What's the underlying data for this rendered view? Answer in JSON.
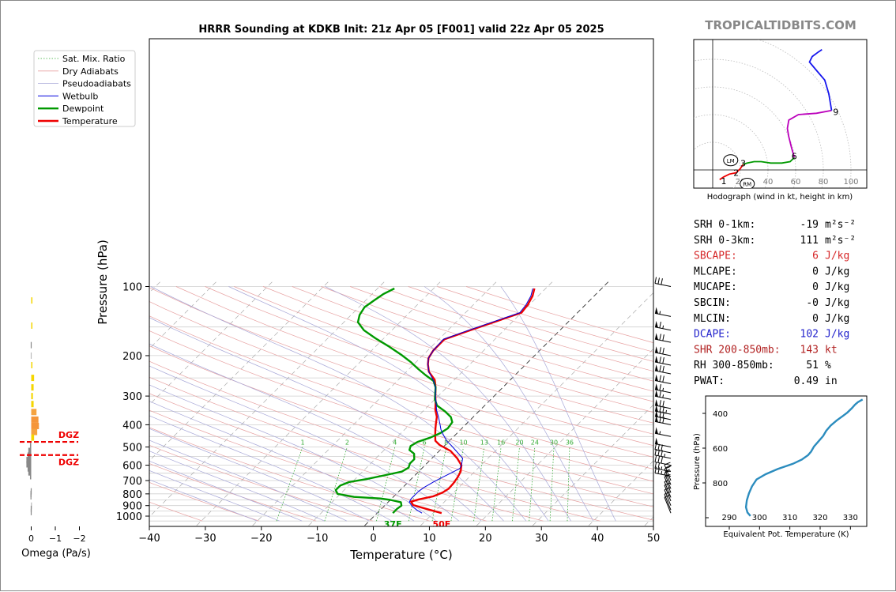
{
  "chart_data": {
    "type": "line",
    "title": "HRRR Sounding at KDKB Init: 21z Apr 05 [F001] valid 22z Apr 05 2025",
    "watermark": "TROPICALTIDBITS.COM",
    "xlabel": "Temperature (°C)",
    "ylabel": "Pressure (hPa)",
    "xlim": [
      -40,
      50
    ],
    "ylim": [
      1050,
      100
    ],
    "xticks": [
      "−40",
      "−30",
      "−20",
      "−10",
      "0",
      "10",
      "20",
      "30",
      "40",
      "50"
    ],
    "yticks": [
      "100",
      "200",
      "300",
      "400",
      "500",
      "600",
      "700",
      "800",
      "900",
      "1000"
    ],
    "legend_position": "top-left",
    "legend": [
      "Sat. Mix. Ratio",
      "Dry Adiabats",
      "Pseudoadiabats",
      "Wetbulb",
      "Dewpoint",
      "Temperature"
    ],
    "mixing_ratio_labels": [
      "1",
      "2",
      "4",
      "6",
      "8",
      "10",
      "13",
      "16",
      "20",
      "24",
      "30",
      "36"
    ],
    "surface_labels": {
      "temperature": "50F",
      "dewpoint": "37F"
    },
    "series": [
      {
        "name": "Temperature",
        "color": "#ee0000",
        "points": [
          [
            11.5,
            970
          ],
          [
            8,
            930
          ],
          [
            5,
            895
          ],
          [
            4,
            865
          ],
          [
            5,
            845
          ],
          [
            7,
            820
          ],
          [
            8,
            790
          ],
          [
            8.4,
            760
          ],
          [
            8.3,
            720
          ],
          [
            8,
            680
          ],
          [
            7.5,
            640
          ],
          [
            6.5,
            600
          ],
          [
            4.5,
            560
          ],
          [
            2,
            520
          ],
          [
            -1,
            490
          ],
          [
            -2.5,
            470
          ],
          [
            -3.5,
            445
          ],
          [
            -4.5,
            420
          ],
          [
            -5.5,
            395
          ],
          [
            -6.5,
            370
          ],
          [
            -8,
            345
          ],
          [
            -9.3,
            320
          ],
          [
            -10.5,
            300
          ],
          [
            -12,
            275
          ],
          [
            -13.5,
            255
          ],
          [
            -16,
            235
          ],
          [
            -17.5,
            218
          ],
          [
            -18.5,
            205
          ],
          [
            -19,
            190
          ],
          [
            -19,
            170
          ],
          [
            -16,
            155
          ],
          [
            -13,
            142
          ],
          [
            -10,
            130
          ],
          [
            -10.3,
            120
          ],
          [
            -11,
            110
          ],
          [
            -12,
            102
          ]
        ]
      },
      {
        "name": "Dewpoint",
        "color": "#009900",
        "points": [
          [
            2.8,
            970
          ],
          [
            2.8,
            930
          ],
          [
            3,
            900
          ],
          [
            2.3,
            870
          ],
          [
            0,
            850
          ],
          [
            -2,
            838
          ],
          [
            -7,
            825
          ],
          [
            -10.5,
            800
          ],
          [
            -11.5,
            770
          ],
          [
            -11.5,
            735
          ],
          [
            -10.5,
            710
          ],
          [
            -8,
            690
          ],
          [
            -5.5,
            665
          ],
          [
            -3,
            640
          ],
          [
            -2.5,
            615
          ],
          [
            -3,
            590
          ],
          [
            -3,
            565
          ],
          [
            -4,
            535
          ],
          [
            -5.5,
            515
          ],
          [
            -6,
            495
          ],
          [
            -5.5,
            475
          ],
          [
            -4,
            455
          ],
          [
            -3,
            435
          ],
          [
            -2.5,
            415
          ],
          [
            -2.8,
            390
          ],
          [
            -4,
            370
          ],
          [
            -6,
            350
          ],
          [
            -8.5,
            330
          ],
          [
            -10,
            310
          ],
          [
            -11,
            292
          ],
          [
            -12,
            275
          ],
          [
            -13.5,
            258
          ],
          [
            -16,
            243
          ],
          [
            -18.5,
            228
          ],
          [
            -21,
            213
          ],
          [
            -24,
            198
          ],
          [
            -27.5,
            183
          ],
          [
            -31.5,
            168
          ],
          [
            -35,
            155
          ],
          [
            -37.5,
            143
          ],
          [
            -38.5,
            133
          ],
          [
            -39,
            123
          ],
          [
            -38.5,
            115
          ],
          [
            -38,
            108
          ],
          [
            -37,
            102
          ]
        ]
      },
      {
        "name": "Wetbulb",
        "color": "#0000dd",
        "points": [
          [
            8,
            970
          ],
          [
            6.5,
            940
          ],
          [
            5,
            905
          ],
          [
            3.8,
            870
          ],
          [
            3.5,
            840
          ],
          [
            3.5,
            810
          ],
          [
            3.5,
            780
          ],
          [
            3.8,
            750
          ],
          [
            4.5,
            710
          ],
          [
            5.2,
            680
          ],
          [
            6,
            650
          ],
          [
            6.8,
            620
          ],
          [
            6.5,
            600
          ],
          [
            5.5,
            560
          ],
          [
            3,
            520
          ],
          [
            1,
            490
          ],
          [
            -0.5,
            470
          ],
          [
            -2,
            445
          ],
          [
            -3.5,
            420
          ],
          [
            -4.8,
            395
          ],
          [
            -6.2,
            370
          ],
          [
            -7.8,
            345
          ],
          [
            -9.2,
            320
          ],
          [
            -10.5,
            300
          ],
          [
            -12,
            275
          ],
          [
            -13.8,
            255
          ],
          [
            -16,
            235
          ],
          [
            -17.5,
            218
          ],
          [
            -18.5,
            205
          ],
          [
            -19,
            190
          ],
          [
            -19.2,
            170
          ],
          [
            -16.3,
            155
          ],
          [
            -13.3,
            142
          ],
          [
            -10.3,
            130
          ],
          [
            -10.6,
            120
          ],
          [
            -11.3,
            110
          ],
          [
            -12.3,
            102
          ]
        ]
      }
    ],
    "wind_barbs": [
      {
        "p": 970,
        "spd": 10
      },
      {
        "p": 940,
        "spd": 10
      },
      {
        "p": 900,
        "spd": 10
      },
      {
        "p": 860,
        "spd": 10
      },
      {
        "p": 830,
        "spd": 5
      },
      {
        "p": 790,
        "spd": 10
      },
      {
        "p": 760,
        "spd": 15
      },
      {
        "p": 730,
        "spd": 15
      },
      {
        "p": 700,
        "spd": 25
      },
      {
        "p": 670,
        "spd": 25
      },
      {
        "p": 640,
        "spd": 25
      },
      {
        "p": 600,
        "spd": 30
      },
      {
        "p": 560,
        "spd": 35
      },
      {
        "p": 530,
        "spd": 30
      },
      {
        "p": 500,
        "spd": 50
      },
      {
        "p": 450,
        "spd": 55
      },
      {
        "p": 400,
        "spd": 70
      },
      {
        "p": 380,
        "spd": 70
      },
      {
        "p": 360,
        "spd": 75
      },
      {
        "p": 340,
        "spd": 70
      },
      {
        "p": 310,
        "spd": 65
      },
      {
        "p": 290,
        "spd": 65
      },
      {
        "p": 265,
        "spd": 70
      },
      {
        "p": 240,
        "spd": 70
      },
      {
        "p": 220,
        "spd": 70
      },
      {
        "p": 200,
        "spd": 70
      },
      {
        "p": 175,
        "spd": 70
      },
      {
        "p": 155,
        "spd": 65
      },
      {
        "p": 135,
        "spd": 55
      },
      {
        "p": 100,
        "spd": 30
      }
    ],
    "omega_panel": {
      "xlabel": "Omega (Pa/s)",
      "xticks": [
        "0",
        "−1",
        "−2"
      ],
      "dgz_label": "DGZ",
      "dgz_bounds_hpa": [
        475,
        542
      ],
      "bars": [
        {
          "p": 115,
          "v": -0.05,
          "c": "#f5d600"
        },
        {
          "p": 148,
          "v": -0.05,
          "c": "#f5d600"
        },
        {
          "p": 180,
          "v": 0.02,
          "c": "#888888"
        },
        {
          "p": 200,
          "v": 0.02,
          "c": "#bbbbbb"
        },
        {
          "p": 220,
          "v": -0.05,
          "c": "#f5d600"
        },
        {
          "p": 250,
          "v": -0.12,
          "c": "#f5d600"
        },
        {
          "p": 275,
          "v": -0.1,
          "c": "#f5d600"
        },
        {
          "p": 300,
          "v": -0.07,
          "c": "#f5d600"
        },
        {
          "p": 325,
          "v": -0.1,
          "c": "#f5d600"
        },
        {
          "p": 352,
          "v": -0.22,
          "c": "#f5a340"
        },
        {
          "p": 380,
          "v": -0.3,
          "c": "#f5963a"
        },
        {
          "p": 405,
          "v": -0.32,
          "c": "#f5963a"
        },
        {
          "p": 430,
          "v": -0.25,
          "c": "#f5a340"
        },
        {
          "p": 455,
          "v": -0.12,
          "c": "#f5d600"
        },
        {
          "p": 495,
          "v": 0.05,
          "c": "#888888"
        },
        {
          "p": 520,
          "v": 0.12,
          "c": "#888888"
        },
        {
          "p": 545,
          "v": 0.15,
          "c": "#888888"
        },
        {
          "p": 570,
          "v": 0.2,
          "c": "#888888"
        },
        {
          "p": 595,
          "v": 0.2,
          "c": "#888888"
        },
        {
          "p": 620,
          "v": 0.15,
          "c": "#888888"
        },
        {
          "p": 645,
          "v": 0.12,
          "c": "#888888"
        },
        {
          "p": 670,
          "v": 0.05,
          "c": "#888888"
        },
        {
          "p": 780,
          "v": 0.02,
          "c": "#888888"
        },
        {
          "p": 800,
          "v": 0.03,
          "c": "#888888"
        },
        {
          "p": 820,
          "v": 0.03,
          "c": "#888888"
        },
        {
          "p": 900,
          "v": 0.01,
          "c": "#bbbbbb"
        },
        {
          "p": 930,
          "v": 0.02,
          "c": "#888888"
        },
        {
          "p": 960,
          "v": 0.02,
          "c": "#888888"
        }
      ]
    },
    "hodograph": {
      "caption": "Hodograph (wind in kt, height in km)",
      "ring_labels": [
        "20",
        "40",
        "60",
        "80",
        "100"
      ],
      "height_labels": [
        {
          "t": "1",
          "u": 8,
          "v": -8
        },
        {
          "t": "2",
          "u": 17,
          "v": -2
        },
        {
          "t": "3",
          "u": 22,
          "v": 5
        },
        {
          "t": "6",
          "u": 59,
          "v": 10
        },
        {
          "t": "9",
          "u": 89,
          "v": 42
        }
      ],
      "markers": [
        {
          "t": "LM",
          "u": 13,
          "v": 7
        },
        {
          "t": "RM",
          "u": 25,
          "v": -10
        }
      ],
      "segments": [
        {
          "color": "#ee0000",
          "pts": [
            [
              5,
              -7
            ],
            [
              8,
              -5
            ],
            [
              12,
              -3
            ],
            [
              17,
              -2
            ],
            [
              20,
              1
            ],
            [
              22,
              4
            ]
          ]
        },
        {
          "color": "#009900",
          "pts": [
            [
              22,
              4
            ],
            [
              25,
              5
            ],
            [
              30,
              6
            ],
            [
              35,
              6
            ],
            [
              42,
              5
            ],
            [
              50,
              5
            ],
            [
              56,
              6
            ],
            [
              59,
              9
            ]
          ]
        },
        {
          "color": "#bb00bb",
          "pts": [
            [
              59,
              9
            ],
            [
              57,
              16
            ],
            [
              55,
              24
            ],
            [
              54,
              30
            ],
            [
              55,
              36
            ],
            [
              62,
              40
            ],
            [
              75,
              41
            ],
            [
              86,
              43
            ]
          ]
        },
        {
          "color": "#1515ee",
          "pts": [
            [
              86,
              43
            ],
            [
              84,
              55
            ],
            [
              81,
              65
            ],
            [
              75,
              72
            ],
            [
              70,
              78
            ],
            [
              72,
              82
            ],
            [
              76,
              85
            ],
            [
              79,
              87
            ]
          ]
        }
      ]
    },
    "theta_e_panel": {
      "xlabel": "Equivalent Pot. Temperature (K)",
      "ylabel": "Pressure (hPa)",
      "xticks": [
        "290",
        "300",
        "310",
        "320",
        "330"
      ],
      "yticks": [
        "400",
        "600",
        "800"
      ],
      "color": "#2b8cbe",
      "points": [
        [
          297,
          990
        ],
        [
          296,
          970
        ],
        [
          295.5,
          940
        ],
        [
          295.8,
          900
        ],
        [
          296.5,
          860
        ],
        [
          297.5,
          820
        ],
        [
          299,
          780
        ],
        [
          302,
          750
        ],
        [
          306,
          720
        ],
        [
          311,
          690
        ],
        [
          314,
          665
        ],
        [
          316,
          640
        ],
        [
          317,
          620
        ],
        [
          318,
          590
        ],
        [
          319.5,
          560
        ],
        [
          321,
          530
        ],
        [
          322,
          500
        ],
        [
          323.5,
          470
        ],
        [
          325.5,
          440
        ],
        [
          327.5,
          415
        ],
        [
          329,
          395
        ],
        [
          330.5,
          370
        ],
        [
          331.5,
          350
        ],
        [
          332.5,
          335
        ],
        [
          334,
          320
        ]
      ]
    },
    "parameters": [
      {
        "label": "SRH 0-1km:",
        "value": "-19",
        "unit": "m²s⁻²",
        "color": "#000000"
      },
      {
        "label": "SRH 0-3km:",
        "value": "111",
        "unit": "m²s⁻²",
        "color": "#000000"
      },
      {
        "label": "SBCAPE:",
        "value": "6",
        "unit": "J/kg",
        "color": "#d62728"
      },
      {
        "label": "MLCAPE:",
        "value": "0",
        "unit": "J/kg",
        "color": "#000000"
      },
      {
        "label": "MUCAPE:",
        "value": "0",
        "unit": "J/kg",
        "color": "#000000"
      },
      {
        "label": "SBCIN:",
        "value": "-0",
        "unit": "J/kg",
        "color": "#000000"
      },
      {
        "label": "MLCIN:",
        "value": "0",
        "unit": "J/kg",
        "color": "#000000"
      },
      {
        "label": "DCAPE:",
        "value": "102",
        "unit": "J/kg",
        "color": "#2222cc"
      },
      {
        "label": "SHR 200-850mb:",
        "value": "143",
        "unit": "kt",
        "color": "#b22222"
      },
      {
        "label": "RH 300-850mb:",
        "value": "51",
        "unit": "%",
        "color": "#000000"
      },
      {
        "label": "PWAT:",
        "value": "0.49",
        "unit": "in",
        "color": "#000000"
      }
    ]
  }
}
